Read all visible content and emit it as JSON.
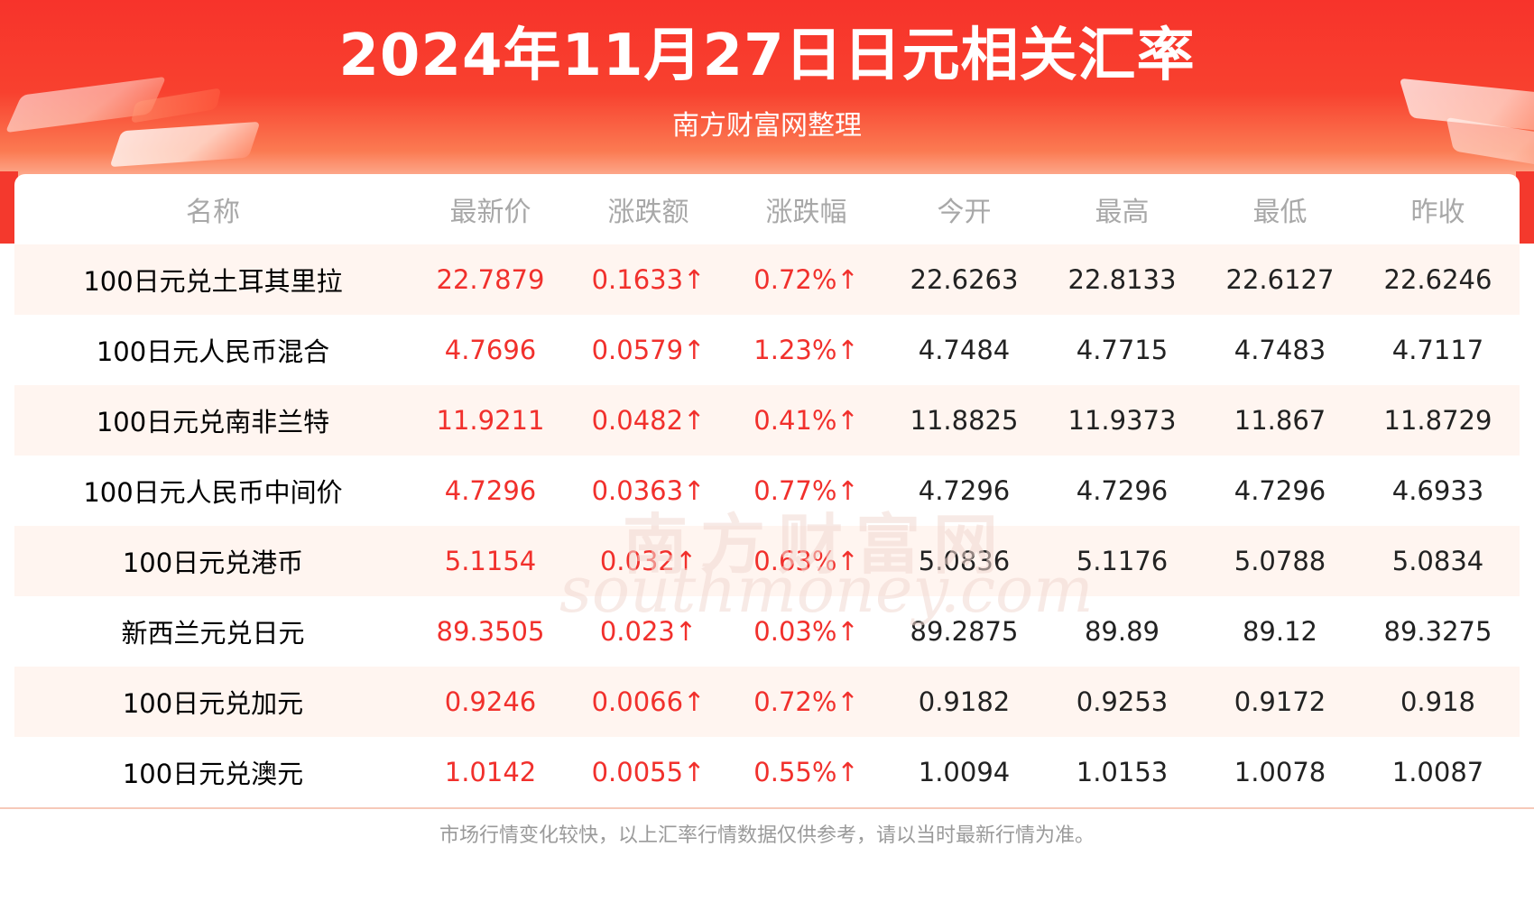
{
  "header": {
    "title": "2024年11月27日日元相关汇率",
    "subtitle": "南方财富网整理"
  },
  "table": {
    "columns": [
      "名称",
      "最新价",
      "涨跌额",
      "涨跌幅",
      "今开",
      "最高",
      "最低",
      "昨收"
    ],
    "rows": [
      [
        "100日元兑土耳其里拉",
        "22.7879",
        "0.1633↑",
        "0.72%↑",
        "22.6263",
        "22.8133",
        "22.6127",
        "22.6246"
      ],
      [
        "100日元人民币混合",
        "4.7696",
        "0.0579↑",
        "1.23%↑",
        "4.7484",
        "4.7715",
        "4.7483",
        "4.7117"
      ],
      [
        "100日元兑南非兰特",
        "11.9211",
        "0.0482↑",
        "0.41%↑",
        "11.8825",
        "11.9373",
        "11.867",
        "11.8729"
      ],
      [
        "100日元人民币中间价",
        "4.7296",
        "0.0363↑",
        "0.77%↑",
        "4.7296",
        "4.7296",
        "4.7296",
        "4.6933"
      ],
      [
        "100日元兑港币",
        "5.1154",
        "0.032↑",
        "0.63%↑",
        "5.0836",
        "5.1176",
        "5.0788",
        "5.0834"
      ],
      [
        "新西兰元兑日元",
        "89.3505",
        "0.023↑",
        "0.03%↑",
        "89.2875",
        "89.89",
        "89.12",
        "89.3275"
      ],
      [
        "100日元兑加元",
        "0.9246",
        "0.0066↑",
        "0.72%↑",
        "0.9182",
        "0.9253",
        "0.9172",
        "0.918"
      ],
      [
        "100日元兑澳元",
        "1.0142",
        "0.0055↑",
        "0.55%↑",
        "1.0094",
        "1.0153",
        "1.0078",
        "1.0087"
      ]
    ]
  },
  "watermark": {
    "cn": "南方财富网",
    "en": "southmoney.com"
  },
  "footer": {
    "note": "市场行情变化较快，以上汇率行情数据仅供参考，请以当时最新行情为准。"
  },
  "colors": {
    "accent": "#f7332b",
    "up": "#f1302c",
    "text": "#222222",
    "header_text": "#a8a8a8",
    "row_stripe": "#fff5f0"
  }
}
